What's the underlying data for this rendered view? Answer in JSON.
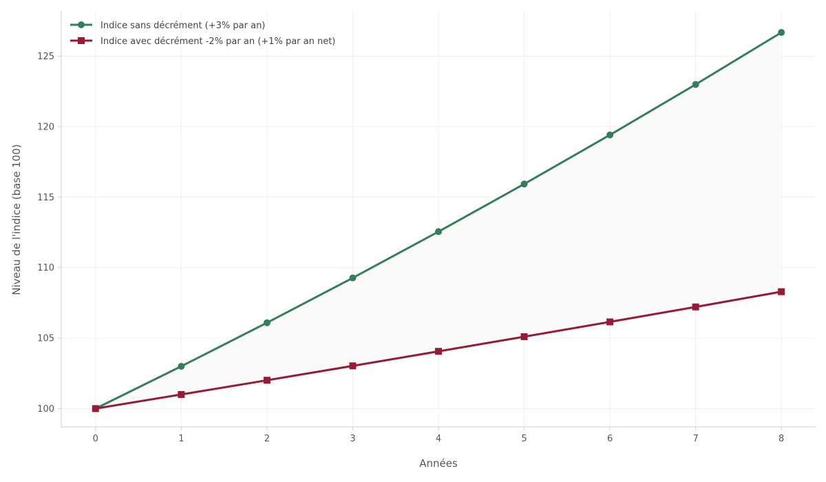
{
  "chart_data": {
    "type": "line",
    "xlabel": "Années",
    "ylabel": "Niveau de l'indice (base 100)",
    "x": [
      0,
      1,
      2,
      3,
      4,
      5,
      6,
      7,
      8
    ],
    "xlim": [
      -0.4,
      8.4
    ],
    "ylim": [
      98.7,
      128.2
    ],
    "yticks": [
      100,
      105,
      110,
      115,
      120,
      125
    ],
    "grid": true,
    "legend_position": "top-left",
    "fill_between_series": true,
    "fill_color": "#fafafa",
    "series": [
      {
        "name": "Indice sans décrément (+3% par an)",
        "values": [
          100.0,
          103.0,
          106.09,
          109.27,
          112.55,
          115.93,
          119.41,
          122.99,
          126.68
        ],
        "color": "#367d5a",
        "marker": "circle"
      },
      {
        "name": "Indice avec décrément -2% par an (+1% par an net)",
        "values": [
          100.0,
          101.0,
          102.01,
          103.03,
          104.06,
          105.1,
          106.15,
          107.21,
          108.29
        ],
        "color": "#961c35",
        "marker": "square"
      }
    ]
  }
}
